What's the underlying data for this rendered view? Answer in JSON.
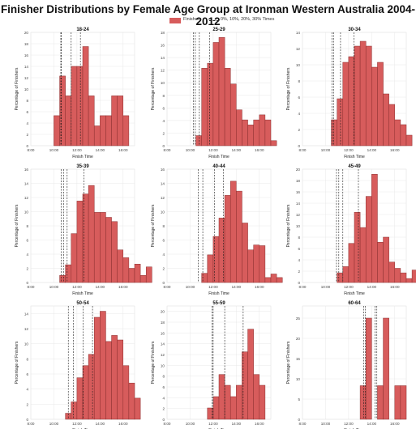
{
  "chart_data": {
    "title": "Finisher Distributions by Female Age Group at Ironman Western Australia 2004-2012",
    "legend": [
      {
        "label": "Finishers",
        "symbol": "bar",
        "color": "#d75c5c"
      },
      {
        "label": "0%, 10%, 20%, 30% Times",
        "symbol": "dashed-line",
        "color": "#222222"
      }
    ],
    "bar_color": "#d75c5c",
    "bar_edge_color": "#8b2f2f",
    "xlabel": "Finish Time",
    "ylabel": "Percentage of Finishers",
    "xticks": [
      "8:00",
      "10:00",
      "12:00",
      "14:00",
      "16:00"
    ],
    "xtick_hours": [
      8,
      10,
      12,
      14,
      16
    ],
    "xlim_hours": [
      8,
      17
    ],
    "bin_start_hours": 9.5,
    "bin_width_hours": 0.5,
    "grid": true,
    "legend_position": "top-center",
    "panels": [
      {
        "type": "bar",
        "title": "18-24",
        "ylim": [
          0,
          20
        ],
        "yticks": [
          0,
          2,
          4,
          6,
          8,
          10,
          12,
          14,
          16,
          18,
          20
        ],
        "values": [
          0,
          5.3,
          12.3,
          8.8,
          14.0,
          14.0,
          17.5,
          8.8,
          3.5,
          5.3,
          5.3,
          8.8,
          8.8,
          5.3,
          0,
          0
        ],
        "percentile_lines_hours": [
          10.6,
          10.65,
          11.5,
          12.3
        ]
      },
      {
        "type": "bar",
        "title": "25-29",
        "ylim": [
          0,
          18
        ],
        "yticks": [
          0,
          2,
          4,
          6,
          8,
          10,
          12,
          14,
          16,
          18
        ],
        "values": [
          0,
          0,
          1.6,
          12.3,
          13.1,
          16.4,
          17.2,
          12.3,
          9.8,
          5.7,
          4.1,
          3.3,
          4.1,
          4.9,
          4.1,
          0.8
        ],
        "percentile_lines_hours": [
          10.3,
          10.45,
          10.8,
          11.7
        ]
      },
      {
        "type": "bar",
        "title": "30-34",
        "ylim": [
          0,
          14
        ],
        "yticks": [
          0,
          2,
          4,
          6,
          8,
          10,
          12,
          14
        ],
        "values": [
          0,
          0,
          3.2,
          5.8,
          10.3,
          11.0,
          12.3,
          12.9,
          12.3,
          9.7,
          10.3,
          6.4,
          5.1,
          3.2,
          2.6,
          1.3
        ],
        "percentile_lines_hours": [
          10.55,
          10.7,
          11.3,
          12.45
        ]
      },
      {
        "type": "bar",
        "title": "35-39",
        "ylim": [
          0,
          16
        ],
        "yticks": [
          0,
          2,
          4,
          6,
          8,
          10,
          12,
          14,
          16
        ],
        "values": [
          0,
          0,
          1.0,
          2.5,
          6.9,
          11.5,
          12.5,
          13.7,
          9.9,
          9.9,
          9.2,
          8.6,
          4.6,
          3.5,
          2.0,
          2.6,
          1.0,
          2.2
        ],
        "percentile_lines_hours": [
          10.65,
          10.85,
          11.15,
          12.6
        ]
      },
      {
        "type": "bar",
        "title": "40-44",
        "ylim": [
          0,
          16
        ],
        "yticks": [
          0,
          2,
          4,
          6,
          8,
          10,
          12,
          14,
          16
        ],
        "values": [
          0,
          0,
          0,
          1.3,
          3.9,
          6.5,
          9.1,
          12.3,
          14.3,
          12.9,
          8.4,
          4.6,
          5.3,
          5.2,
          0.7,
          1.2,
          0.7
        ],
        "percentile_lines_hours": [
          10.7,
          11.1,
          12.1,
          12.9
        ]
      },
      {
        "type": "bar",
        "title": "45-49",
        "ylim": [
          0,
          20
        ],
        "yticks": [
          0,
          2,
          4,
          6,
          8,
          10,
          12,
          14,
          16,
          18,
          20
        ],
        "values": [
          0,
          0,
          0,
          1.7,
          2.8,
          6.9,
          12.4,
          9.7,
          15.2,
          19.1,
          7.1,
          8.0,
          3.6,
          2.5,
          1.7,
          0.7,
          2.2,
          0.4
        ],
        "percentile_lines_hours": [
          10.95,
          11.15,
          11.5,
          12.85
        ]
      },
      {
        "type": "bar",
        "title": "50-54",
        "ylim": [
          0,
          15
        ],
        "yticks": [
          0,
          2,
          4,
          6,
          8,
          10,
          12,
          14
        ],
        "values": [
          0,
          0,
          0,
          0.8,
          2.3,
          5.5,
          7.1,
          8.6,
          13.5,
          14.3,
          10.3,
          11.1,
          10.5,
          7.1,
          4.8,
          2.8
        ],
        "percentile_lines_hours": [
          11.25,
          11.7,
          12.55,
          13.35
        ]
      },
      {
        "type": "bar",
        "title": "55-59",
        "ylim": [
          0,
          21
        ],
        "yticks": [
          0,
          2,
          4,
          6,
          8,
          10,
          12,
          14,
          16,
          18,
          20
        ],
        "values": [
          0,
          0,
          0,
          0,
          2.1,
          4.2,
          8.3,
          6.3,
          4.2,
          6.3,
          12.5,
          16.7,
          8.3,
          6.3,
          0
        ],
        "percentile_lines_hours": [
          11.9,
          12.0,
          13.0,
          14.6
        ]
      },
      {
        "type": "bar",
        "title": "60-64",
        "ylim": [
          0,
          28
        ],
        "yticks": [
          0,
          5,
          10,
          15,
          20,
          25
        ],
        "values": [
          0,
          0,
          0,
          0,
          0,
          0,
          0,
          8.3,
          25.0,
          0,
          8.3,
          25.0,
          0,
          8.3,
          8.3
        ],
        "percentile_lines_hours": [
          13.3,
          13.45,
          14.3,
          14.45
        ]
      }
    ]
  }
}
